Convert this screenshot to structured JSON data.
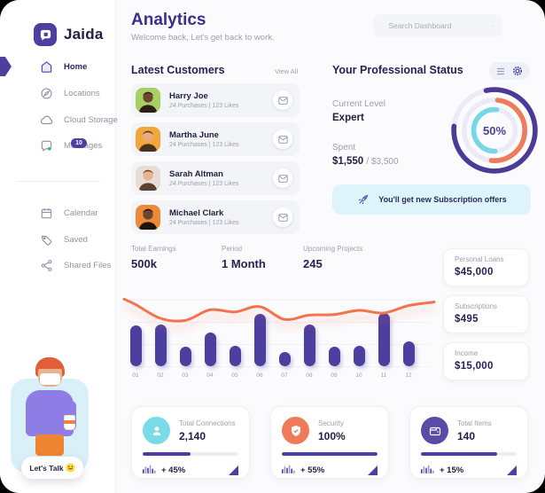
{
  "app": {
    "name": "Jaida"
  },
  "sidebar": {
    "main_items": [
      {
        "label": "Home",
        "icon": "home-icon",
        "active": true
      },
      {
        "label": "Locations",
        "icon": "locations-icon",
        "active": false
      },
      {
        "label": "Cloud Storage",
        "icon": "cloud-icon",
        "active": false
      },
      {
        "label": "Messages",
        "icon": "messages-icon",
        "active": false,
        "badge": "10"
      }
    ],
    "secondary_items": [
      {
        "label": "Calendar",
        "icon": "calendar-icon"
      },
      {
        "label": "Saved",
        "icon": "tag-icon"
      },
      {
        "label": "Shared Files",
        "icon": "share-icon"
      }
    ],
    "cta_label": "Let's Talk"
  },
  "header": {
    "title": "Analytics",
    "subtitle": "Welcome back, Let's get back to work.",
    "search_placeholder": "Search Dashboard"
  },
  "customers": {
    "title": "Latest Customers",
    "view_all": "View All",
    "rows": [
      {
        "name": "Harry Joe",
        "meta": "24 Purchases  |  123 Likes",
        "avatar_bg": "#a8cf63",
        "skin": "#6d4530",
        "hair": "#2c1e16"
      },
      {
        "name": "Martha June",
        "meta": "24 Purchases  |  123 Likes",
        "avatar_bg": "#f0a83c",
        "skin": "#e8ab7e",
        "hair": "#4a2e1e"
      },
      {
        "name": "Sarah Altman",
        "meta": "24 Purchases  |  123 Likes",
        "avatar_bg": "#e9dcd4",
        "skin": "#e8b48e",
        "hair": "#5d4030"
      },
      {
        "name": "Michael Clark",
        "meta": "24 Purchases  |  123 Likes",
        "avatar_bg": "#ed8a3a",
        "skin": "#6d4530",
        "hair": "#1e140e"
      }
    ]
  },
  "status": {
    "title": "Your Professional Status",
    "current_level_label": "Current Level",
    "current_level": "Expert",
    "spent_label": "Spent",
    "spent": "$1,550",
    "spent_total": "/ $3,500",
    "gauge": {
      "label": "50%",
      "rings": [
        {
          "name": "outer",
          "value": 80,
          "color": "#4b3b97"
        },
        {
          "name": "middle",
          "value": 50,
          "color": "#f07b5b"
        },
        {
          "name": "inner",
          "value": 52,
          "color": "#76d7e6"
        }
      ]
    },
    "banner_text": "You'll get new Subscription offers"
  },
  "stats": [
    {
      "label": "Total Earnings",
      "value": "500k"
    },
    {
      "label": "Period",
      "value": "1 Month"
    },
    {
      "label": "Upcoming Projects",
      "value": "245"
    }
  ],
  "chart_data": {
    "type": "bar+line",
    "categories": [
      "01",
      "02",
      "03",
      "04",
      "05",
      "06",
      "07",
      "08",
      "09",
      "10",
      "11",
      "12"
    ],
    "series": [
      {
        "name": "earnings-bars",
        "type": "bar",
        "color": "#4c3f9f",
        "values": [
          76,
          78,
          37,
          64,
          39,
          98,
          26,
          78,
          37,
          38,
          100,
          46
        ]
      },
      {
        "name": "trend-line",
        "type": "line",
        "color": "#f3734e",
        "values": [
          86,
          60,
          56,
          76,
          72,
          82,
          58,
          66,
          67,
          75,
          70,
          84
        ]
      }
    ],
    "ylim": [
      0,
      100
    ],
    "grid": true,
    "legend": false,
    "title": ""
  },
  "side_cards": [
    {
      "label": "Personal Loans",
      "value": "$45,000"
    },
    {
      "label": "Subscriptions",
      "value": "$495"
    },
    {
      "label": "Income",
      "value": "$15,000"
    }
  ],
  "bottom_cards": [
    {
      "icon": "user-icon",
      "icon_bg": "#79dbe8",
      "label": "Total Connections",
      "value": "2,140",
      "progress": 50,
      "delta": "+ 45%"
    },
    {
      "icon": "shield-icon",
      "icon_bg": "#f07b5b",
      "label": "Security",
      "value": "100%",
      "progress": 100,
      "delta": "+ 55%"
    },
    {
      "icon": "wallet-icon",
      "icon_bg": "#584ca6",
      "label": "Total Items",
      "value": "140",
      "progress": 80,
      "delta": "+ 15%"
    }
  ],
  "colors": {
    "accent": "#4c3f9f",
    "coral": "#f3734e",
    "cyan": "#79dbe8",
    "navy": "#262253",
    "gray": "#9aa0ad"
  }
}
